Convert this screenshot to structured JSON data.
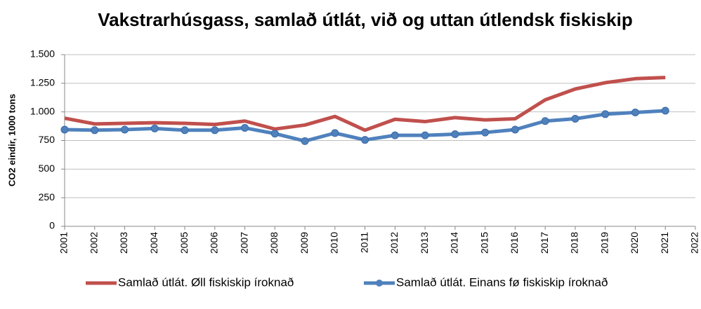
{
  "chart_data": {
    "type": "line",
    "title": "Vakstrarhúsgass, samlað útlát, við og uttan útlendsk fiskiskip",
    "y_label": "CO2  eindir, 1000 tons",
    "x": [
      2001,
      2002,
      2003,
      2004,
      2005,
      2006,
      2007,
      2008,
      2009,
      2010,
      2011,
      2012,
      2013,
      2014,
      2015,
      2016,
      2017,
      2018,
      2019,
      2020,
      2021
    ],
    "xlim": [
      2001,
      2022
    ],
    "xticks": [
      2001,
      2002,
      2003,
      2004,
      2005,
      2006,
      2007,
      2008,
      2009,
      2010,
      2011,
      2012,
      2013,
      2014,
      2015,
      2016,
      2017,
      2018,
      2019,
      2020,
      2021,
      2022
    ],
    "ylim": [
      0,
      1500
    ],
    "yticks": [
      0,
      250,
      500,
      750,
      {
        "value": 1000,
        "label": "1.000"
      },
      {
        "value": 1250,
        "label": "1.250"
      },
      {
        "value": 1500,
        "label": "1.500"
      }
    ],
    "grid": true,
    "series": [
      {
        "name": "Samlað útlát. Øll fiskiskip íroknað",
        "color": "#c0504d",
        "marker": false,
        "values": [
          945,
          895,
          900,
          905,
          900,
          890,
          920,
          850,
          885,
          960,
          840,
          935,
          915,
          950,
          930,
          940,
          1105,
          1200,
          1255,
          1290,
          1300
        ]
      },
      {
        "name": "Samlað útlát. Einans fø fiskiskip íroknað",
        "color": "#4f81bd",
        "marker": true,
        "values": [
          845,
          840,
          845,
          855,
          840,
          840,
          860,
          810,
          745,
          815,
          755,
          795,
          795,
          805,
          820,
          845,
          920,
          940,
          980,
          995,
          1010
        ]
      }
    ]
  }
}
